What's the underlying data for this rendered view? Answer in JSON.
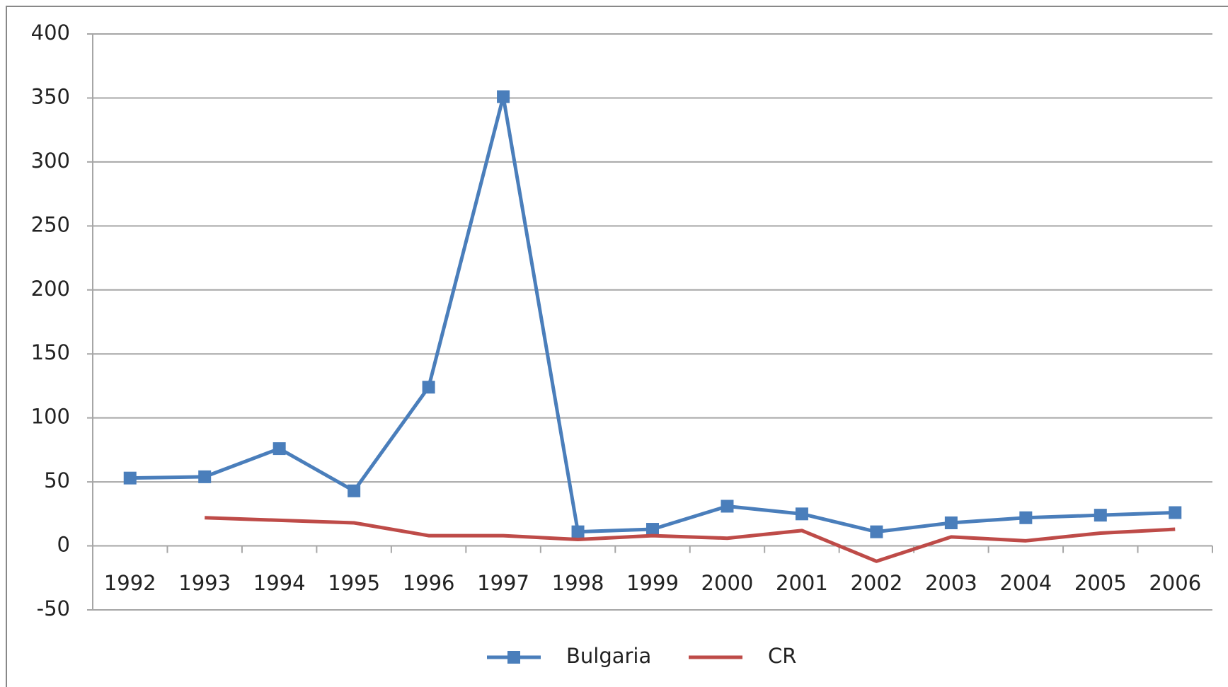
{
  "chart_data": {
    "type": "line",
    "categories": [
      "1992",
      "1993",
      "1994",
      "1995",
      "1996",
      "1997",
      "1998",
      "1999",
      "2000",
      "2001",
      "2002",
      "2003",
      "2004",
      "2005",
      "2006"
    ],
    "series": [
      {
        "name": "Bulgaria",
        "color": "#4a7ebb",
        "marker": "square",
        "values": [
          53,
          54,
          76,
          43,
          124,
          351,
          11,
          13,
          31,
          25,
          11,
          18,
          22,
          24,
          26
        ]
      },
      {
        "name": "CR",
        "color": "#be4b48",
        "values": [
          null,
          22,
          20,
          18,
          8,
          8,
          5,
          8,
          6,
          12,
          -12,
          7,
          4,
          10,
          13
        ]
      }
    ],
    "ylim": [
      -50,
      400
    ],
    "yticks": [
      -50,
      0,
      50,
      100,
      150,
      200,
      250,
      300,
      350,
      400
    ],
    "grid": true,
    "legend": "bottom"
  }
}
